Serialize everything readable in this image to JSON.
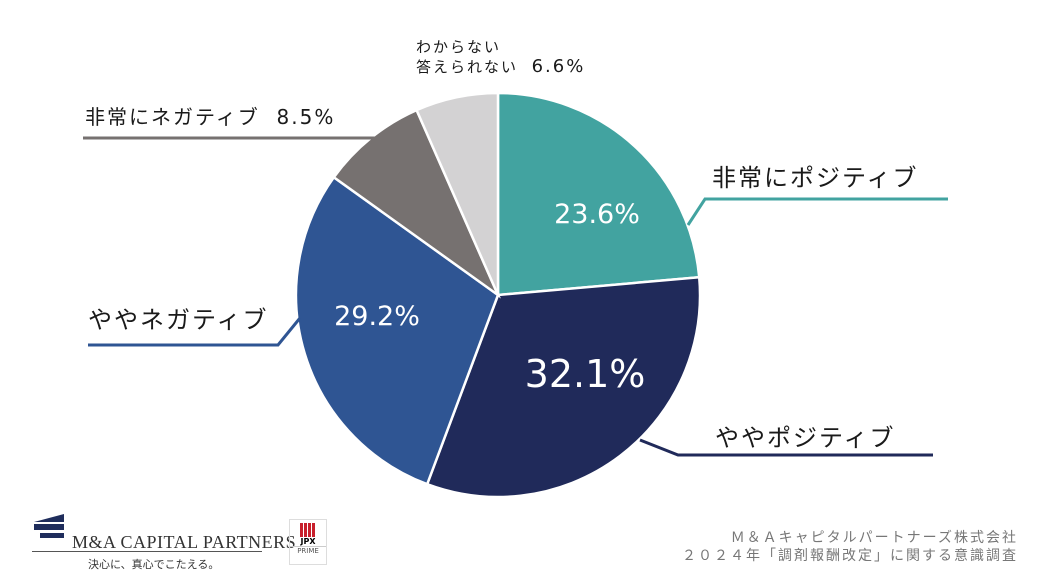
{
  "chart_data": {
    "type": "pie",
    "start": "top",
    "direction": "clockwise",
    "slices": [
      {
        "label": "非常にポジティブ",
        "value": 23.6,
        "display": "23.6%",
        "color": "#42a3a0"
      },
      {
        "label": "ややポジティブ",
        "value": 32.1,
        "display": "32.1%",
        "color": "#202a5a"
      },
      {
        "label": "ややネガティブ",
        "value": 29.2,
        "display": "29.2%",
        "color": "#2f5593"
      },
      {
        "label": "非常にネガティブ",
        "value": 8.5,
        "display": "8.5%",
        "color": "#767170"
      },
      {
        "label_line1": "わからない",
        "label_line2": "答えられない",
        "value": 6.6,
        "display": "6.6%",
        "color": "#d3d2d3"
      }
    ]
  },
  "footer": {
    "source_line1": "Ｍ＆Ａキャピタルパートナーズ株式会社",
    "source_line2": "２０２４年「調剤報酬改定」に関する意識調査",
    "logo_name": "M&A CAPITAL PARTNERS",
    "logo_tagline": "決心に、真心でこたえる。",
    "jpx_name": "JPX",
    "jpx_market": "PRIME"
  }
}
